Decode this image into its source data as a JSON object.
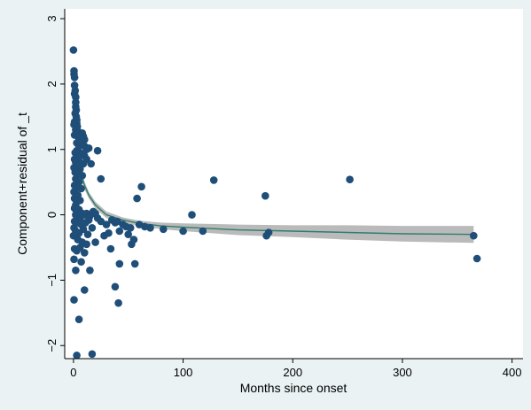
{
  "chart_data": {
    "type": "scatter",
    "title": "",
    "xlabel": "Months since onset",
    "ylabel": "Component+residual of _t",
    "xlim": [
      -8,
      410
    ],
    "ylim": [
      -2.2,
      3.15
    ],
    "xticks": [
      0,
      100,
      200,
      300,
      400
    ],
    "yticks": [
      -2,
      -1,
      0,
      1,
      2,
      3
    ],
    "grid": false,
    "legend": "none",
    "colors": {
      "figure_background": "#eaf2f3",
      "plot_background": "#ffffff",
      "points": "#1f4e79",
      "fit_line": "#2e7d6b",
      "confidence_band": "#a9a9a9"
    },
    "points": [
      [
        0.0,
        2.52
      ],
      [
        0.5,
        2.2
      ],
      [
        0.5,
        2.15
      ],
      [
        1.0,
        2.1
      ],
      [
        1.0,
        1.98
      ],
      [
        1.5,
        1.9
      ],
      [
        1.0,
        1.85
      ],
      [
        2.0,
        1.8
      ],
      [
        2.0,
        1.72
      ],
      [
        2.0,
        1.65
      ],
      [
        2.5,
        1.6
      ],
      [
        1.5,
        1.55
      ],
      [
        2.5,
        1.5
      ],
      [
        3.0,
        1.45
      ],
      [
        1.0,
        1.42
      ],
      [
        3.0,
        1.4
      ],
      [
        0.5,
        1.38
      ],
      [
        3.5,
        1.35
      ],
      [
        2.0,
        1.3
      ],
      [
        4.0,
        1.28
      ],
      [
        1.0,
        1.22
      ],
      [
        4.0,
        1.2
      ],
      [
        5.0,
        1.18
      ],
      [
        6.0,
        1.22
      ],
      [
        8.0,
        1.25
      ],
      [
        9.0,
        1.2
      ],
      [
        10.0,
        1.15
      ],
      [
        3.0,
        1.1
      ],
      [
        5.0,
        1.05
      ],
      [
        7.0,
        1.1
      ],
      [
        10.0,
        1.05
      ],
      [
        12.0,
        1.0
      ],
      [
        14.0,
        1.02
      ],
      [
        1.5,
        0.95
      ],
      [
        3.0,
        0.98
      ],
      [
        6.0,
        0.95
      ],
      [
        8.0,
        0.92
      ],
      [
        10.0,
        0.9
      ],
      [
        1.0,
        0.85
      ],
      [
        4.0,
        0.88
      ],
      [
        12.0,
        0.85
      ],
      [
        2.0,
        0.8
      ],
      [
        5.0,
        0.82
      ],
      [
        9.0,
        0.78
      ],
      [
        16.0,
        0.78
      ],
      [
        0.5,
        0.72
      ],
      [
        3.0,
        0.75
      ],
      [
        6.0,
        0.7
      ],
      [
        1.5,
        0.65
      ],
      [
        4.0,
        0.62
      ],
      [
        8.0,
        0.6
      ],
      [
        2.0,
        0.55
      ],
      [
        5.0,
        0.5
      ],
      [
        1.0,
        0.45
      ],
      [
        3.0,
        0.42
      ],
      [
        7.0,
        0.4
      ],
      [
        0.5,
        0.35
      ],
      [
        2.0,
        0.32
      ],
      [
        4.0,
        0.3
      ],
      [
        1.0,
        0.25
      ],
      [
        3.0,
        0.2
      ],
      [
        6.0,
        0.22
      ],
      [
        2.0,
        0.15
      ],
      [
        1.0,
        0.1
      ],
      [
        5.0,
        0.08
      ],
      [
        3.0,
        0.05
      ],
      [
        8.0,
        0.02
      ],
      [
        2.0,
        0.0
      ],
      [
        4.0,
        -0.02
      ],
      [
        6.0,
        -0.05
      ],
      [
        10.0,
        0.0
      ],
      [
        12.0,
        0.02
      ],
      [
        15.0,
        -0.02
      ],
      [
        18.0,
        0.05
      ],
      [
        20.0,
        0.02
      ],
      [
        1.0,
        -0.1
      ],
      [
        3.0,
        -0.12
      ],
      [
        7.0,
        -0.15
      ],
      [
        11.0,
        -0.12
      ],
      [
        14.0,
        -0.08
      ],
      [
        22.0,
        -0.05
      ],
      [
        25.0,
        -0.1
      ],
      [
        0.5,
        -0.2
      ],
      [
        2.0,
        -0.25
      ],
      [
        5.0,
        -0.28
      ],
      [
        9.0,
        -0.22
      ],
      [
        13.0,
        -0.3
      ],
      [
        17.0,
        -0.2
      ],
      [
        0.0,
        -0.32
      ],
      [
        4.0,
        -0.38
      ],
      [
        8.0,
        -0.42
      ],
      [
        12.0,
        -0.45
      ],
      [
        20.0,
        -0.42
      ],
      [
        1.0,
        -0.52
      ],
      [
        3.0,
        -0.55
      ],
      [
        6.0,
        -0.5
      ],
      [
        10.0,
        -0.58
      ],
      [
        0.5,
        -0.68
      ],
      [
        2.0,
        -0.85
      ],
      [
        7.0,
        -0.72
      ],
      [
        15.0,
        -0.85
      ],
      [
        10.0,
        -1.15
      ],
      [
        0.5,
        -1.3
      ],
      [
        5.0,
        -1.6
      ],
      [
        3.0,
        -2.15
      ],
      [
        17.0,
        -2.13
      ],
      [
        22.0,
        0.98
      ],
      [
        25.0,
        0.55
      ],
      [
        30.0,
        -0.15
      ],
      [
        32.0,
        -0.28
      ],
      [
        28.0,
        -0.32
      ],
      [
        34.0,
        -0.52
      ],
      [
        38.0,
        -0.12
      ],
      [
        42.0,
        -0.25
      ],
      [
        45.0,
        -0.15
      ],
      [
        35.0,
        -0.08
      ],
      [
        40.0,
        -0.1
      ],
      [
        48.0,
        -0.18
      ],
      [
        50.0,
        -0.3
      ],
      [
        53.0,
        -0.45
      ],
      [
        55.0,
        -0.38
      ],
      [
        56.0,
        -0.75
      ],
      [
        42.0,
        -0.75
      ],
      [
        38.0,
        -1.1
      ],
      [
        41.0,
        -1.35
      ],
      [
        58.0,
        0.25
      ],
      [
        62.0,
        0.43
      ],
      [
        52.0,
        -0.2
      ],
      [
        60.0,
        -0.15
      ],
      [
        65.0,
        -0.18
      ],
      [
        70.0,
        -0.2
      ],
      [
        82.0,
        -0.22
      ],
      [
        100.0,
        -0.25
      ],
      [
        108.0,
        0.0
      ],
      [
        118.0,
        -0.25
      ],
      [
        128.0,
        0.53
      ],
      [
        175.0,
        0.29
      ],
      [
        176.0,
        -0.32
      ],
      [
        178.0,
        -0.27
      ],
      [
        252.0,
        0.54
      ],
      [
        365.0,
        -0.32
      ],
      [
        368.0,
        -0.67
      ]
    ],
    "fit": [
      [
        1.0,
        1.55
      ],
      [
        2.0,
        1.2
      ],
      [
        3.0,
        1.0
      ],
      [
        5.0,
        0.78
      ],
      [
        7.0,
        0.62
      ],
      [
        10.0,
        0.45
      ],
      [
        14.0,
        0.3
      ],
      [
        20.0,
        0.15
      ],
      [
        30.0,
        0.0
      ],
      [
        45.0,
        -0.08
      ],
      [
        60.0,
        -0.13
      ],
      [
        80.0,
        -0.17
      ],
      [
        100.0,
        -0.19
      ],
      [
        150.0,
        -0.23
      ],
      [
        200.0,
        -0.25
      ],
      [
        250.0,
        -0.27
      ],
      [
        300.0,
        -0.29
      ],
      [
        365.0,
        -0.3
      ]
    ],
    "ci_upper": [
      [
        1.0,
        1.7
      ],
      [
        2.0,
        1.32
      ],
      [
        3.0,
        1.1
      ],
      [
        5.0,
        0.86
      ],
      [
        7.0,
        0.7
      ],
      [
        10.0,
        0.51
      ],
      [
        14.0,
        0.35
      ],
      [
        20.0,
        0.2
      ],
      [
        30.0,
        0.05
      ],
      [
        45.0,
        -0.04
      ],
      [
        60.0,
        -0.09
      ],
      [
        80.0,
        -0.12
      ],
      [
        100.0,
        -0.13
      ],
      [
        150.0,
        -0.15
      ],
      [
        200.0,
        -0.16
      ],
      [
        250.0,
        -0.16
      ],
      [
        300.0,
        -0.17
      ],
      [
        365.0,
        -0.17
      ]
    ],
    "ci_lower": [
      [
        1.0,
        1.4
      ],
      [
        2.0,
        1.08
      ],
      [
        3.0,
        0.9
      ],
      [
        5.0,
        0.7
      ],
      [
        7.0,
        0.54
      ],
      [
        10.0,
        0.39
      ],
      [
        14.0,
        0.25
      ],
      [
        20.0,
        0.1
      ],
      [
        30.0,
        -0.05
      ],
      [
        45.0,
        -0.12
      ],
      [
        60.0,
        -0.17
      ],
      [
        80.0,
        -0.22
      ],
      [
        100.0,
        -0.25
      ],
      [
        150.0,
        -0.31
      ],
      [
        200.0,
        -0.34
      ],
      [
        250.0,
        -0.38
      ],
      [
        300.0,
        -0.41
      ],
      [
        365.0,
        -0.43
      ]
    ]
  }
}
